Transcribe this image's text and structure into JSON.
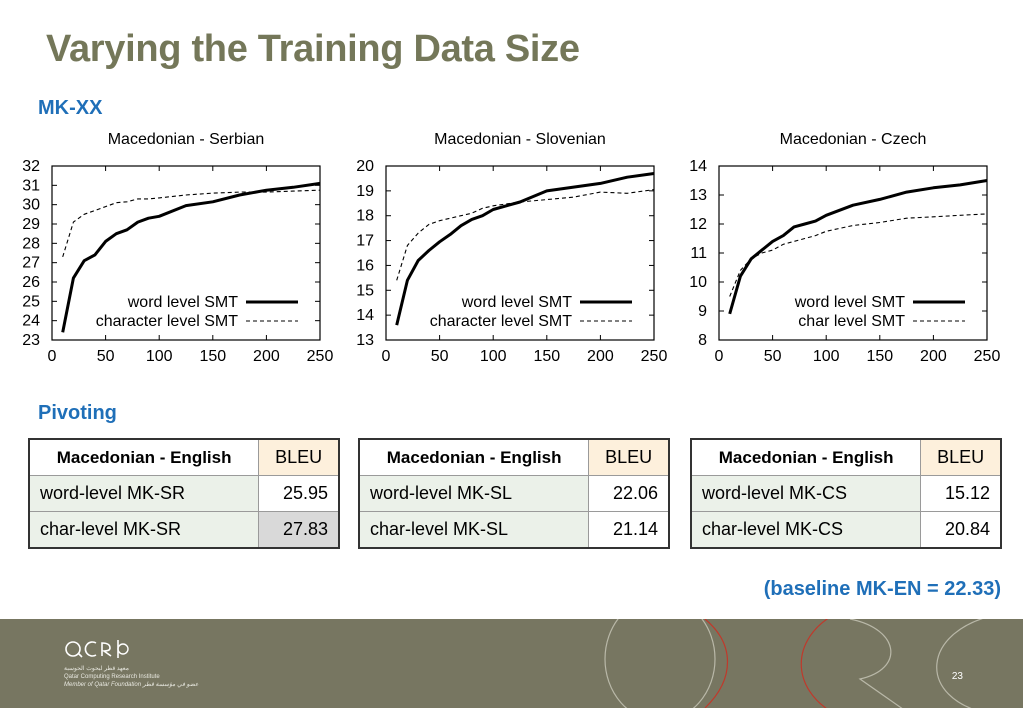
{
  "slide": {
    "title": "Varying the Training Data Size",
    "section_mkxx": "MK-XX",
    "section_pivot": "Pivoting",
    "baseline": "(baseline MK-EN = 22.33)",
    "page_number": "23",
    "logo_text": "qcri",
    "logo_line1": "معهد قطر لبحوث الحوسبة",
    "logo_line2": "Qatar Computing Research Institute",
    "logo_line3": "Member of Qatar Foundation عضو في مؤسسة قطر"
  },
  "chart_data": [
    {
      "type": "line",
      "title": "Macedonian - Serbian",
      "xlim": [
        0,
        250
      ],
      "ylim": [
        23,
        32
      ],
      "xticks": [
        0,
        50,
        100,
        150,
        200,
        250
      ],
      "yticks": [
        23,
        24,
        25,
        26,
        27,
        28,
        29,
        30,
        31,
        32
      ],
      "grid": false,
      "legend_position": "bottom-right",
      "series": [
        {
          "name": "word level SMT",
          "style": "solid",
          "x": [
            10,
            20,
            30,
            40,
            50,
            60,
            70,
            80,
            90,
            100,
            125,
            150,
            175,
            200,
            225,
            250
          ],
          "y": [
            23.4,
            26.2,
            27.1,
            27.4,
            28.1,
            28.5,
            28.7,
            29.1,
            29.3,
            29.4,
            29.95,
            30.15,
            30.5,
            30.75,
            30.9,
            31.1
          ]
        },
        {
          "name": "character level SMT",
          "style": "dashed",
          "x": [
            10,
            20,
            30,
            40,
            50,
            60,
            70,
            80,
            90,
            100,
            125,
            150,
            175,
            200,
            225,
            250
          ],
          "y": [
            27.3,
            29.1,
            29.5,
            29.7,
            29.9,
            30.1,
            30.15,
            30.3,
            30.3,
            30.35,
            30.5,
            30.6,
            30.65,
            30.65,
            30.7,
            30.75
          ]
        }
      ]
    },
    {
      "type": "line",
      "title": "Macedonian - Slovenian",
      "xlim": [
        0,
        250
      ],
      "ylim": [
        13,
        20
      ],
      "xticks": [
        0,
        50,
        100,
        150,
        200,
        250
      ],
      "yticks": [
        13,
        14,
        15,
        16,
        17,
        18,
        19,
        20
      ],
      "grid": false,
      "legend_position": "bottom-right",
      "series": [
        {
          "name": "word level SMT",
          "style": "solid",
          "x": [
            10,
            20,
            30,
            40,
            50,
            60,
            70,
            80,
            90,
            100,
            125,
            150,
            175,
            200,
            225,
            250
          ],
          "y": [
            13.6,
            15.4,
            16.2,
            16.6,
            16.95,
            17.25,
            17.6,
            17.85,
            18.0,
            18.25,
            18.55,
            19.0,
            19.15,
            19.3,
            19.55,
            19.7
          ]
        },
        {
          "name": "character level SMT",
          "style": "dashed",
          "x": [
            10,
            20,
            30,
            40,
            50,
            60,
            70,
            80,
            90,
            100,
            125,
            150,
            175,
            200,
            225,
            250
          ],
          "y": [
            15.4,
            16.8,
            17.3,
            17.65,
            17.8,
            17.9,
            18.0,
            18.1,
            18.3,
            18.4,
            18.55,
            18.65,
            18.75,
            18.95,
            18.9,
            19.05
          ]
        }
      ]
    },
    {
      "type": "line",
      "title": "Macedonian - Czech",
      "xlim": [
        0,
        250
      ],
      "ylim": [
        8,
        14
      ],
      "xticks": [
        0,
        50,
        100,
        150,
        200,
        250
      ],
      "yticks": [
        8,
        9,
        10,
        11,
        12,
        13,
        14
      ],
      "grid": false,
      "legend_position": "bottom-right",
      "series": [
        {
          "name": "word level SMT",
          "style": "solid",
          "x": [
            10,
            20,
            30,
            40,
            50,
            60,
            70,
            80,
            90,
            100,
            125,
            150,
            175,
            200,
            225,
            250
          ],
          "y": [
            8.9,
            10.2,
            10.8,
            11.1,
            11.4,
            11.6,
            11.9,
            12.0,
            12.1,
            12.3,
            12.65,
            12.85,
            13.1,
            13.25,
            13.35,
            13.5
          ]
        },
        {
          "name": "char level SMT",
          "style": "dashed",
          "x": [
            10,
            20,
            30,
            40,
            50,
            60,
            70,
            80,
            90,
            100,
            125,
            150,
            175,
            200,
            225,
            250
          ],
          "y": [
            9.5,
            10.4,
            10.8,
            11.0,
            11.1,
            11.3,
            11.4,
            11.5,
            11.6,
            11.75,
            11.95,
            12.05,
            12.2,
            12.25,
            12.3,
            12.35
          ]
        }
      ]
    }
  ],
  "tables": [
    {
      "header": "Macedonian - English",
      "metric": "BLEU",
      "rows": [
        {
          "label": "word-level MK-SR",
          "value": "25.95"
        },
        {
          "label": "char-level MK-SR",
          "value": "27.83"
        }
      ]
    },
    {
      "header": "Macedonian - English",
      "metric": "BLEU",
      "rows": [
        {
          "label": "word-level MK-SL",
          "value": "22.06"
        },
        {
          "label": "char-level MK-SL",
          "value": "21.14"
        }
      ]
    },
    {
      "header": "Macedonian - English",
      "metric": "BLEU",
      "rows": [
        {
          "label": "word-level MK-CS",
          "value": "15.12"
        },
        {
          "label": "char-level MK-CS",
          "value": "20.84"
        }
      ]
    }
  ]
}
